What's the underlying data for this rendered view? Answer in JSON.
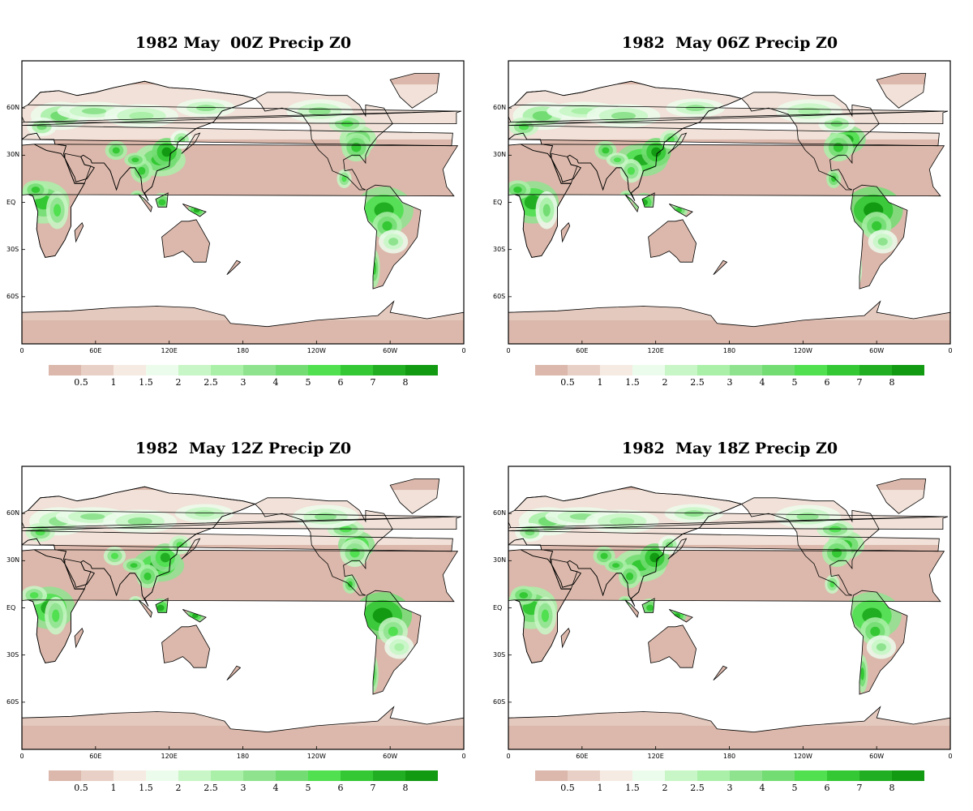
{
  "colors": {
    "dry_land": "#dbb8ab",
    "ocean": "#ffffff",
    "wet_mid": "#8fe38f",
    "wet_high": "#26b526",
    "coast": "#000000"
  },
  "colorbar": {
    "colors": [
      "#dbb8ab",
      "#e8d0c6",
      "#f6ebe3",
      "#ecfcec",
      "#c8f6c6",
      "#aaf0a8",
      "#8fe38f",
      "#73dd73",
      "#50e050",
      "#34c834",
      "#22ae22",
      "#129a12"
    ],
    "labels": [
      "0.5",
      "1",
      "1.5",
      "2",
      "2.5",
      "3",
      "4",
      "5",
      "6",
      "7",
      "8"
    ]
  },
  "axes": {
    "lat_labels": [
      "60N",
      "30N",
      "EQ",
      "30S",
      "60S"
    ],
    "lon_labels": [
      "0",
      "60E",
      "120E",
      "180",
      "120W",
      "60W",
      "0"
    ]
  },
  "panels": [
    {
      "title": "1982 May  00Z Precip Z0"
    },
    {
      "title": "1982  May 06Z Precip Z0"
    },
    {
      "title": "1982  May 12Z Precip Z0"
    },
    {
      "title": "1982  May 18Z Precip Z0"
    }
  ]
}
